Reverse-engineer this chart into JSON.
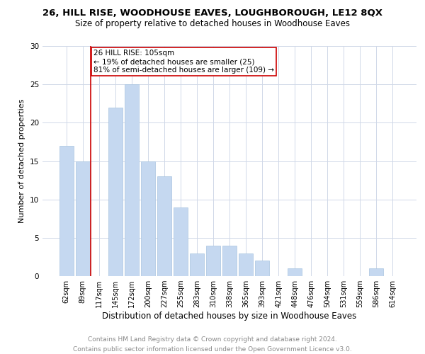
{
  "title": "26, HILL RISE, WOODHOUSE EAVES, LOUGHBOROUGH, LE12 8QX",
  "subtitle": "Size of property relative to detached houses in Woodhouse Eaves",
  "xlabel": "Distribution of detached houses by size in Woodhouse Eaves",
  "ylabel": "Number of detached properties",
  "categories": [
    "62sqm",
    "89sqm",
    "117sqm",
    "145sqm",
    "172sqm",
    "200sqm",
    "227sqm",
    "255sqm",
    "283sqm",
    "310sqm",
    "338sqm",
    "365sqm",
    "393sqm",
    "421sqm",
    "448sqm",
    "476sqm",
    "504sqm",
    "531sqm",
    "559sqm",
    "586sqm",
    "614sqm"
  ],
  "values": [
    17,
    15,
    0,
    22,
    25,
    15,
    13,
    9,
    3,
    4,
    4,
    3,
    2,
    0,
    1,
    0,
    0,
    0,
    0,
    1,
    0
  ],
  "bar_color": "#c5d8f0",
  "bar_edge_color": "#a8c4e0",
  "property_label": "26 HILL RISE: 105sqm",
  "annotation_line1": "← 19% of detached houses are smaller (25)",
  "annotation_line2": "81% of semi-detached houses are larger (109) →",
  "vline_x_index": 1.5,
  "vline_color": "#cc0000",
  "annotation_box_color": "#cc0000",
  "ylim": [
    0,
    30
  ],
  "yticks": [
    0,
    5,
    10,
    15,
    20,
    25,
    30
  ],
  "grid_color": "#d0d8e8",
  "footer_line1": "Contains HM Land Registry data © Crown copyright and database right 2024.",
  "footer_line2": "Contains public sector information licensed under the Open Government Licence v3.0.",
  "title_fontsize": 9.5,
  "subtitle_fontsize": 8.5,
  "xlabel_fontsize": 8.5,
  "ylabel_fontsize": 8,
  "tick_fontsize": 7,
  "footer_fontsize": 6.5,
  "annotation_fontsize": 7.5,
  "bar_width": 0.85
}
